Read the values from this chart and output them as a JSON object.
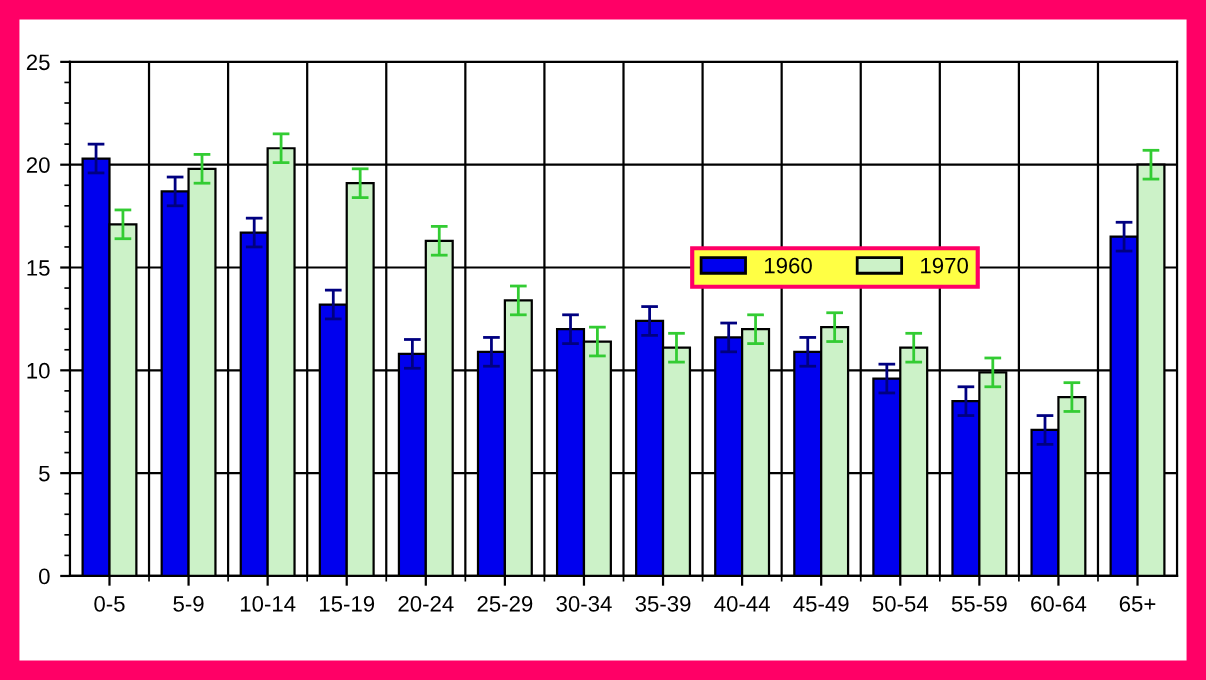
{
  "chart_data": {
    "type": "bar",
    "categories": [
      "0-5",
      "5-9",
      "10-14",
      "15-19",
      "20-24",
      "25-29",
      "30-34",
      "35-39",
      "40-44",
      "45-49",
      "50-54",
      "55-59",
      "60-64",
      "65+"
    ],
    "series": [
      {
        "name": "1960",
        "color": "#0000ee",
        "values": [
          20.3,
          18.7,
          16.7,
          13.2,
          10.8,
          10.9,
          12.0,
          12.4,
          11.6,
          10.9,
          9.6,
          8.5,
          7.1,
          16.5
        ],
        "errors": [
          0.7,
          0.7,
          0.7,
          0.7,
          0.7,
          0.7,
          0.7,
          0.7,
          0.7,
          0.7,
          0.7,
          0.7,
          0.7,
          0.7
        ]
      },
      {
        "name": "1970",
        "color": "#ccf2c8",
        "values": [
          17.1,
          19.8,
          20.8,
          19.1,
          16.3,
          13.4,
          11.4,
          11.1,
          12.0,
          12.1,
          11.1,
          9.9,
          8.7,
          20.0
        ],
        "errors": [
          0.7,
          0.7,
          0.7,
          0.7,
          0.7,
          0.7,
          0.7,
          0.7,
          0.7,
          0.7,
          0.7,
          0.7,
          0.7,
          0.7
        ]
      }
    ],
    "ylim": [
      0,
      25
    ],
    "yticks": [
      0,
      5,
      10,
      15,
      20,
      25
    ],
    "grid": true,
    "legend": "right"
  }
}
